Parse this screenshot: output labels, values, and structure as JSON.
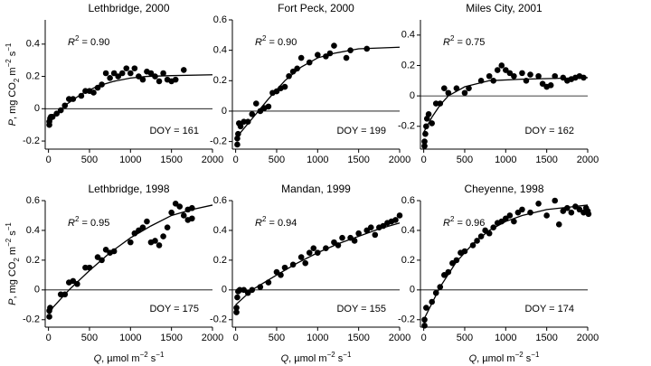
{
  "chart_data": [
    {
      "type": "scatter",
      "title": "Lethbridge, 2000",
      "color": "#000000",
      "x": [
        10,
        10,
        20,
        30,
        50,
        100,
        150,
        200,
        250,
        300,
        400,
        450,
        500,
        550,
        600,
        650,
        700,
        750,
        800,
        850,
        900,
        950,
        1000,
        1050,
        1100,
        1150,
        1200,
        1250,
        1300,
        1350,
        1400,
        1450,
        1500,
        1550,
        1650
      ],
      "values": [
        -0.1,
        -0.08,
        -0.06,
        -0.05,
        -0.05,
        -0.03,
        -0.01,
        0.02,
        0.06,
        0.06,
        0.08,
        0.11,
        0.11,
        0.1,
        0.13,
        0.15,
        0.22,
        0.19,
        0.22,
        0.2,
        0.22,
        0.25,
        0.22,
        0.25,
        0.2,
        0.18,
        0.23,
        0.22,
        0.2,
        0.17,
        0.22,
        0.18,
        0.17,
        0.18,
        0.24
      ],
      "curve": {
        "x": [
          0,
          200,
          400,
          600,
          800,
          1000,
          1200,
          1500,
          2000
        ],
        "values": [
          -0.08,
          0.02,
          0.09,
          0.14,
          0.17,
          0.19,
          0.2,
          0.205,
          0.21
        ]
      },
      "xlim": [
        -40,
        2000
      ],
      "xticks": [
        0,
        500,
        1000,
        1500,
        2000
      ],
      "ylim": [
        -0.25,
        0.55
      ],
      "yticks": [
        -0.2,
        0,
        0.2,
        0.4
      ],
      "r2_label": [
        {
          "text": "R",
          "style": "italic"
        },
        {
          "text": "2",
          "style": "sup"
        },
        {
          "text": " = 0.90"
        }
      ],
      "doy_label": "DOY = 161",
      "ylabel": [
        {
          "text": "P",
          "style": "italic"
        },
        {
          "text": ", mg CO"
        },
        {
          "text": "2",
          "style": "sub"
        },
        {
          "text": " m"
        },
        {
          "text": "−2",
          "style": "sup"
        },
        {
          "text": " s"
        },
        {
          "text": "−1",
          "style": "sup"
        }
      ]
    },
    {
      "type": "scatter",
      "title": "Fort Peck, 2000",
      "color": "#000000",
      "x": [
        20,
        20,
        30,
        40,
        60,
        100,
        150,
        200,
        250,
        300,
        350,
        400,
        450,
        500,
        550,
        600,
        650,
        700,
        750,
        800,
        900,
        1000,
        1100,
        1150,
        1200,
        1350,
        1400,
        1600
      ],
      "values": [
        -0.22,
        -0.18,
        -0.15,
        -0.08,
        -0.1,
        -0.07,
        -0.07,
        -0.02,
        0.05,
        0,
        0.02,
        0.03,
        0.12,
        0.13,
        0.15,
        0.16,
        0.23,
        0.26,
        0.28,
        0.35,
        0.32,
        0.37,
        0.36,
        0.38,
        0.43,
        0.35,
        0.4,
        0.41
      ],
      "curve": {
        "x": [
          0,
          200,
          400,
          600,
          800,
          1000,
          1200,
          1500,
          2000
        ],
        "values": [
          -0.18,
          -0.05,
          0.08,
          0.2,
          0.29,
          0.35,
          0.38,
          0.41,
          0.42
        ]
      },
      "xlim": [
        -40,
        2000
      ],
      "xticks": [
        0,
        500,
        1000,
        1500,
        2000
      ],
      "ylim": [
        -0.25,
        0.6
      ],
      "yticks": [
        -0.2,
        0,
        0.2,
        0.4,
        0.6
      ],
      "r2_label": [
        {
          "text": "R",
          "style": "italic"
        },
        {
          "text": "2",
          "style": "sup"
        },
        {
          "text": " = 0.90"
        }
      ],
      "doy_label": "DOY = 199"
    },
    {
      "type": "scatter",
      "title": "Miles City, 2001",
      "color": "#000000",
      "x": [
        10,
        10,
        20,
        30,
        40,
        60,
        100,
        150,
        200,
        250,
        300,
        400,
        500,
        550,
        700,
        800,
        850,
        900,
        950,
        1000,
        1050,
        1100,
        1200,
        1250,
        1300,
        1400,
        1450,
        1500,
        1550,
        1600,
        1700,
        1750,
        1800,
        1850,
        1900,
        1950
      ],
      "values": [
        -0.33,
        -0.3,
        -0.25,
        -0.2,
        -0.15,
        -0.12,
        -0.18,
        -0.05,
        -0.05,
        0.05,
        0.02,
        0.05,
        0.02,
        0.05,
        0.1,
        0.13,
        0.1,
        0.17,
        0.2,
        0.17,
        0.15,
        0.13,
        0.15,
        0.1,
        0.14,
        0.13,
        0.08,
        0.06,
        0.07,
        0.13,
        0.12,
        0.1,
        0.11,
        0.12,
        0.13,
        0.12
      ],
      "curve": {
        "x": [
          0,
          100,
          200,
          300,
          500,
          800,
          1200,
          2000
        ],
        "values": [
          -0.24,
          -0.14,
          -0.06,
          0,
          0.06,
          0.1,
          0.11,
          0.12
        ]
      },
      "xlim": [
        -40,
        2000
      ],
      "xticks": [
        0,
        500,
        1000,
        1500,
        2000
      ],
      "ylim": [
        -0.35,
        0.5
      ],
      "yticks": [
        -0.2,
        0,
        0.2,
        0.4
      ],
      "r2_label": [
        {
          "text": "R",
          "style": "italic"
        },
        {
          "text": "2",
          "style": "sup"
        },
        {
          "text": " = 0.75"
        }
      ],
      "doy_label": "DOY = 162"
    },
    {
      "type": "scatter",
      "title": "Lethbridge, 1998",
      "color": "#000000",
      "x": [
        10,
        10,
        20,
        150,
        200,
        250,
        300,
        350,
        450,
        500,
        600,
        650,
        700,
        750,
        800,
        1000,
        1050,
        1100,
        1150,
        1200,
        1250,
        1300,
        1350,
        1400,
        1450,
        1500,
        1550,
        1600,
        1650,
        1700,
        1700,
        1750,
        1750
      ],
      "values": [
        -0.18,
        -0.14,
        -0.12,
        -0.03,
        -0.03,
        0.05,
        0.06,
        0.04,
        0.15,
        0.15,
        0.22,
        0.2,
        0.27,
        0.25,
        0.26,
        0.32,
        0.38,
        0.4,
        0.42,
        0.46,
        0.32,
        0.33,
        0.3,
        0.36,
        0.42,
        0.52,
        0.58,
        0.56,
        0.5,
        0.47,
        0.54,
        0.48,
        0.55
      ],
      "curve": {
        "x": [
          0,
          250,
          500,
          750,
          1000,
          1250,
          1500,
          1750,
          2000
        ],
        "values": [
          -0.15,
          0,
          0.13,
          0.25,
          0.35,
          0.43,
          0.5,
          0.54,
          0.57
        ]
      },
      "xlim": [
        -40,
        2000
      ],
      "xticks": [
        0,
        500,
        1000,
        1500,
        2000
      ],
      "ylim": [
        -0.25,
        0.6
      ],
      "yticks": [
        -0.2,
        0,
        0.2,
        0.4,
        0.6
      ],
      "r2_label": [
        {
          "text": "R",
          "style": "italic"
        },
        {
          "text": "2",
          "style": "sup"
        },
        {
          "text": " = 0.95"
        }
      ],
      "doy_label": "DOY = 175",
      "ylabel": [
        {
          "text": "P",
          "style": "italic"
        },
        {
          "text": ", mg CO"
        },
        {
          "text": "2",
          "style": "sub"
        },
        {
          "text": " m"
        },
        {
          "text": "−2",
          "style": "sup"
        },
        {
          "text": " s"
        },
        {
          "text": "−1",
          "style": "sup"
        }
      ],
      "xlabel": [
        {
          "text": "Q",
          "style": "italic"
        },
        {
          "text": ", µmol m"
        },
        {
          "text": "−2",
          "style": "sup"
        },
        {
          "text": " s"
        },
        {
          "text": "−1",
          "style": "sup"
        }
      ]
    },
    {
      "type": "scatter",
      "title": "Mandan, 1999",
      "color": "#000000",
      "x": [
        10,
        10,
        20,
        30,
        50,
        100,
        150,
        200,
        300,
        400,
        500,
        550,
        600,
        700,
        800,
        850,
        900,
        950,
        1000,
        1100,
        1200,
        1250,
        1300,
        1400,
        1450,
        1500,
        1600,
        1650,
        1700,
        1750,
        1800,
        1850,
        1900,
        1950,
        2000
      ],
      "values": [
        -0.15,
        -0.12,
        -0.05,
        -0.01,
        0,
        0,
        -0.02,
        0,
        0.02,
        0.05,
        0.12,
        0.1,
        0.15,
        0.17,
        0.22,
        0.18,
        0.25,
        0.28,
        0.25,
        0.28,
        0.32,
        0.3,
        0.35,
        0.35,
        0.33,
        0.38,
        0.4,
        0.42,
        0.37,
        0.42,
        0.43,
        0.45,
        0.46,
        0.47,
        0.5
      ],
      "curve": {
        "x": [
          0,
          200,
          500,
          750,
          1000,
          1250,
          1500,
          1750,
          2000
        ],
        "values": [
          -0.1,
          0,
          0.1,
          0.18,
          0.25,
          0.31,
          0.36,
          0.41,
          0.45
        ]
      },
      "xlim": [
        -40,
        2000
      ],
      "xticks": [
        0,
        500,
        1000,
        1500,
        2000
      ],
      "ylim": [
        -0.25,
        0.6
      ],
      "yticks": [
        -0.2,
        0,
        0.2,
        0.4,
        0.6
      ],
      "r2_label": [
        {
          "text": "R",
          "style": "italic"
        },
        {
          "text": "2",
          "style": "sup"
        },
        {
          "text": " = 0.94"
        }
      ],
      "doy_label": "DOY = 155",
      "xlabel": [
        {
          "text": "Q",
          "style": "italic"
        },
        {
          "text": ", µmol m"
        },
        {
          "text": "−2",
          "style": "sup"
        },
        {
          "text": " s"
        },
        {
          "text": "−1",
          "style": "sup"
        }
      ]
    },
    {
      "type": "scatter",
      "title": "Cheyenne, 1998",
      "color": "#000000",
      "x": [
        10,
        10,
        30,
        100,
        150,
        200,
        250,
        300,
        350,
        400,
        450,
        500,
        600,
        650,
        700,
        750,
        800,
        850,
        900,
        950,
        1000,
        1050,
        1100,
        1150,
        1200,
        1300,
        1400,
        1500,
        1600,
        1650,
        1700,
        1750,
        1800,
        1850,
        1900,
        1950,
        1980,
        2000,
        2010
      ],
      "values": [
        -0.24,
        -0.2,
        -0.12,
        -0.08,
        -0.02,
        0.02,
        0.1,
        0.12,
        0.18,
        0.2,
        0.25,
        0.26,
        0.3,
        0.33,
        0.36,
        0.4,
        0.38,
        0.42,
        0.45,
        0.46,
        0.48,
        0.5,
        0.46,
        0.52,
        0.54,
        0.52,
        0.58,
        0.5,
        0.6,
        0.44,
        0.53,
        0.55,
        0.52,
        0.56,
        0.54,
        0.52,
        0.55,
        0.53,
        0.51
      ],
      "curve": {
        "x": [
          0,
          200,
          400,
          600,
          800,
          1000,
          1200,
          1500,
          2000
        ],
        "values": [
          -0.2,
          0.02,
          0.19,
          0.31,
          0.4,
          0.46,
          0.5,
          0.54,
          0.57
        ]
      },
      "xlim": [
        -40,
        2000
      ],
      "xticks": [
        0,
        500,
        1000,
        1500,
        2000
      ],
      "ylim": [
        -0.25,
        0.6
      ],
      "yticks": [
        -0.2,
        0,
        0.2,
        0.4,
        0.6
      ],
      "r2_label": [
        {
          "text": "R",
          "style": "italic"
        },
        {
          "text": "2",
          "style": "sup"
        },
        {
          "text": " = 0.96"
        }
      ],
      "doy_label": "DOY = 174",
      "xlabel": [
        {
          "text": "Q",
          "style": "italic"
        },
        {
          "text": ", µmol m"
        },
        {
          "text": "−2",
          "style": "sup"
        },
        {
          "text": " s"
        },
        {
          "text": "−1",
          "style": "sup"
        }
      ]
    }
  ]
}
